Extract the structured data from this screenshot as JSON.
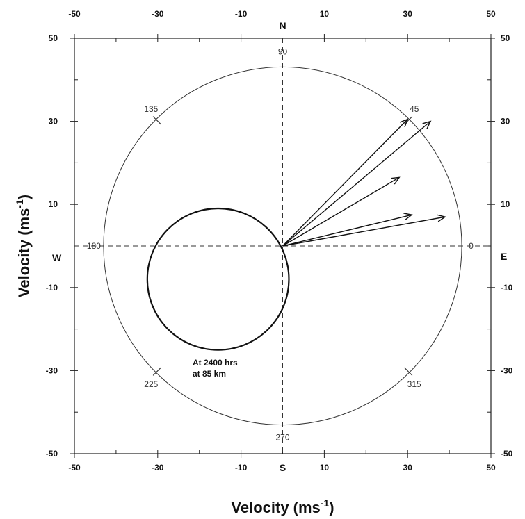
{
  "chart_data": {
    "type": "polar-vector",
    "xlabel": "Velocity (ms",
    "ylabel": "Velocity (ms",
    "unit_superscript": "-1",
    "unit_close": ")",
    "xlim": [
      -50,
      50
    ],
    "ylim": [
      -50,
      50
    ],
    "x_ticks": [
      "-50",
      "-30",
      "-10",
      "10",
      "30",
      "50"
    ],
    "y_ticks": [
      "50",
      "30",
      "10",
      "-10",
      "-30",
      "-50"
    ],
    "x_tick_values": [
      -50,
      -30,
      -10,
      10,
      30,
      50
    ],
    "y_tick_values": [
      50,
      30,
      10,
      -10,
      -30,
      -50
    ],
    "grid": false,
    "reference_circle_radius": 43,
    "direction_labels": {
      "north": "N",
      "south": "S",
      "east": "E",
      "west": "W"
    },
    "degree_labels": [
      {
        "angle": 0,
        "text": "0"
      },
      {
        "angle": 45,
        "text": "45"
      },
      {
        "angle": 90,
        "text": "90"
      },
      {
        "angle": 135,
        "text": "135"
      },
      {
        "angle": 180,
        "text": "180"
      },
      {
        "angle": 225,
        "text": "225"
      },
      {
        "angle": 270,
        "text": "270"
      },
      {
        "angle": 315,
        "text": "315"
      }
    ],
    "vectors": [
      {
        "u": 30,
        "v": 30.5
      },
      {
        "u": 35.5,
        "v": 30
      },
      {
        "u": 28,
        "v": 16.5
      },
      {
        "u": 31,
        "v": 7.5
      },
      {
        "u": 39,
        "v": 7
      }
    ],
    "hodograph_circle": {
      "center_x": -15.5,
      "center_y": -8,
      "radius": 17
    },
    "annotation": [
      "At 2400 hrs",
      "at 85 km"
    ]
  }
}
